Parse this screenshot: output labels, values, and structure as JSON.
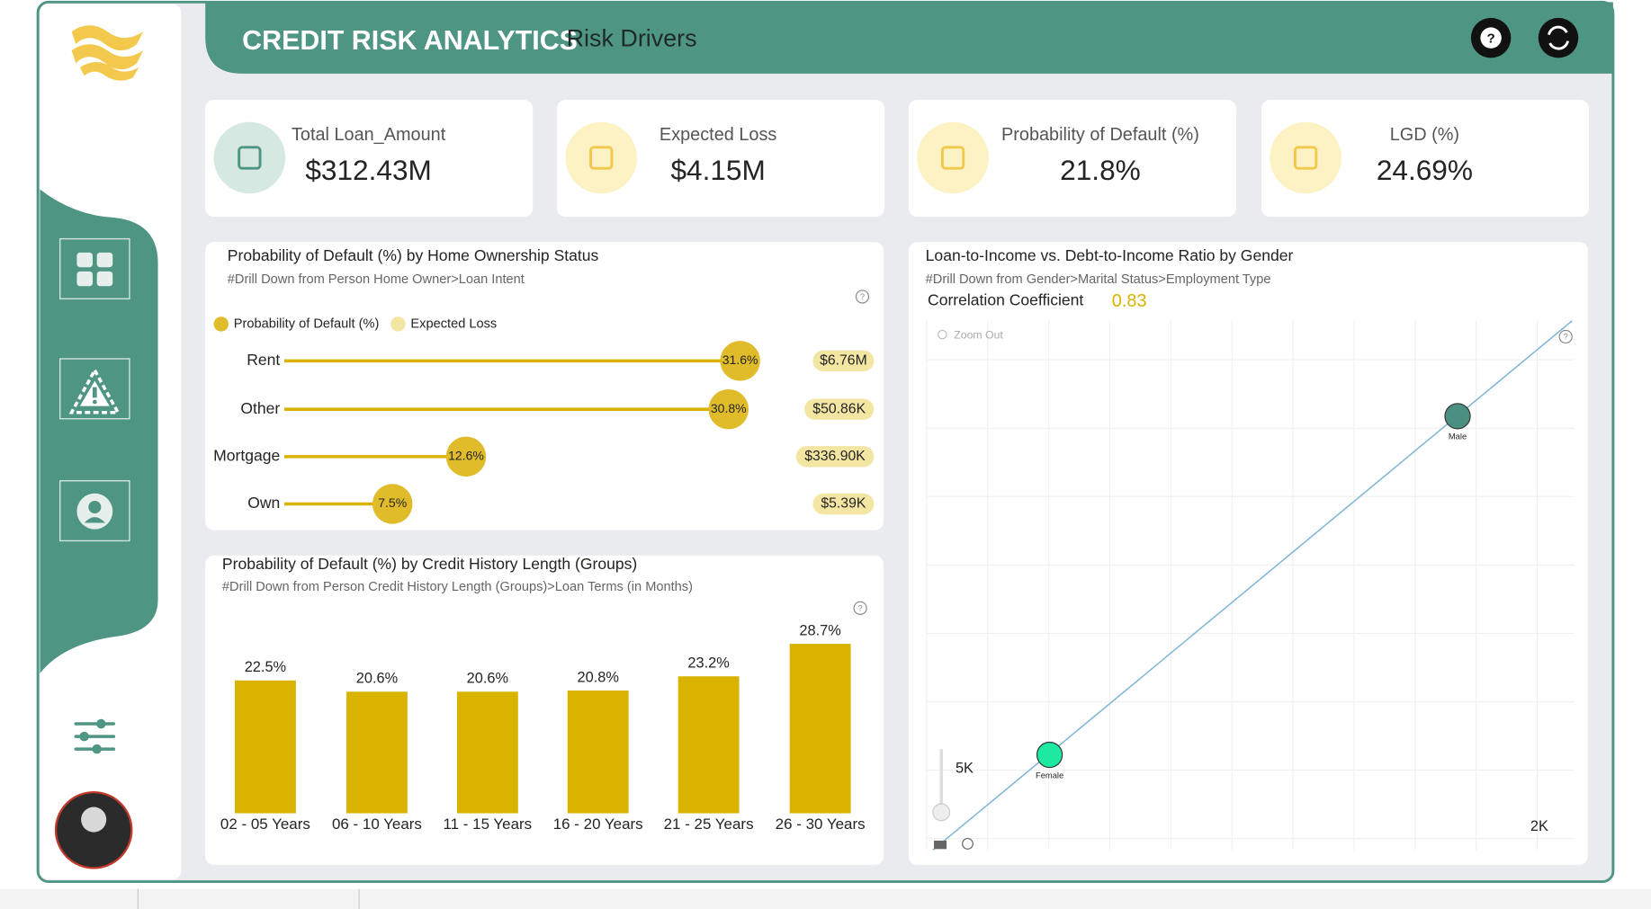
{
  "header": {
    "title": "CREDIT RISK ANALYTICS",
    "subtitle": "Risk Drivers"
  },
  "kpis": [
    {
      "label": "Total Loan_Amount",
      "value": "$312.43M"
    },
    {
      "label": "Expected Loss",
      "value": "$4.15M"
    },
    {
      "label": "Probability of Default (%)",
      "value": "21.8%"
    },
    {
      "label": "LGD (%)",
      "value": "24.69%"
    }
  ],
  "chart_data": [
    {
      "type": "lollipop",
      "title": "Probability of Default (%) by Home Ownership Status",
      "subtitle": "#Drill Down from Person Home Owner>Loan Intent",
      "categories": [
        "Rent",
        "Other",
        "Mortgage",
        "Own"
      ],
      "series": [
        {
          "name": "Probability of Default (%)",
          "color": "#e0bb2a",
          "values": [
            31.6,
            30.8,
            12.6,
            7.5
          ],
          "value_labels": [
            "31.6%",
            "30.8%",
            "12.6%",
            "7.5%"
          ]
        },
        {
          "name": "Expected Loss",
          "color": "#f3e6a3",
          "values": [
            6760000,
            50860,
            336900,
            5390
          ],
          "value_labels": [
            "$6.76M",
            "$50.86K",
            "$336.90K",
            "$5.39K"
          ]
        }
      ]
    },
    {
      "type": "bar",
      "title": "Probability of Default (%) by Credit History Length (Groups)",
      "subtitle": "#Drill Down from Person Credit History Length (Groups)>Loan Terms (in Months)",
      "categories": [
        "02 - 05 Years",
        "06 - 10 Years",
        "11 - 15 Years",
        "16 - 20 Years",
        "21 - 25 Years",
        "26 - 30 Years"
      ],
      "values": [
        22.5,
        20.6,
        20.6,
        20.8,
        23.2,
        28.7
      ],
      "value_labels": [
        "22.5%",
        "20.6%",
        "20.6%",
        "20.8%",
        "23.2%",
        "28.7%"
      ],
      "color": "#d9b300"
    },
    {
      "type": "scatter",
      "title": "Loan-to-Income vs. Debt-to-Income Ratio by Gender",
      "subtitle": "#Drill Down from Gender>Marital Status>Employment Type",
      "stat_label": "Correlation Coefficient",
      "stat_value": "0.83",
      "annotations": [
        "Zoom Out",
        "5K",
        "2K"
      ],
      "series": [
        {
          "name": "Female",
          "color": "#1de9a0",
          "x": [
            0.19
          ],
          "values": [
            0.18
          ]
        },
        {
          "name": "Male",
          "color": "#4a8f80",
          "x": [
            0.82
          ],
          "values": [
            0.82
          ]
        }
      ]
    }
  ]
}
